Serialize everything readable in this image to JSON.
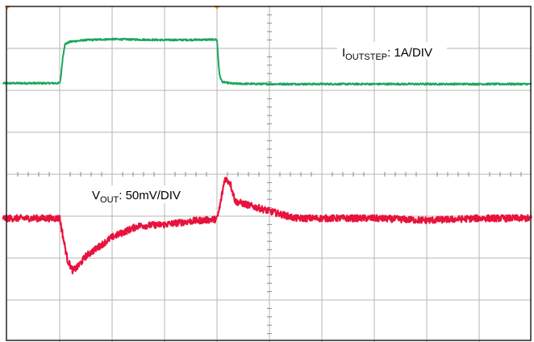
{
  "chart_data": {
    "type": "line",
    "title": "",
    "xlabel": "",
    "ylabel": "",
    "divisions": {
      "x": 10,
      "y": 8
    },
    "grid": true,
    "trigger_markers": [
      0.0,
      4.0
    ],
    "series": [
      {
        "name": "IOUTSTEP",
        "label_main": "I",
        "label_sub": "OUTSTEP",
        "label_rest": ": 1A/DIV",
        "color": "#1aa65a",
        "scale": "1A/DIV",
        "noise": 0.02,
        "x": [
          -0.08,
          1.0,
          1.02,
          1.06,
          1.1,
          1.2,
          1.5,
          2.0,
          3.0,
          4.0,
          4.02,
          4.05,
          4.1,
          4.3,
          5.0,
          6.0,
          7.0,
          8.0,
          9.0,
          10.0
        ],
        "y": [
          6.17,
          6.17,
          6.3,
          6.8,
          7.1,
          7.16,
          7.2,
          7.22,
          7.2,
          7.21,
          6.8,
          6.35,
          6.2,
          6.16,
          6.15,
          6.15,
          6.15,
          6.15,
          6.15,
          6.15
        ]
      },
      {
        "name": "VOUT",
        "label_main": "V",
        "label_sub": "OUT",
        "label_rest": ": 50mV/DIV",
        "color": "#e8123c",
        "scale": "50mV/DIV",
        "noise": 0.08,
        "x": [
          -0.08,
          1.0,
          1.08,
          1.15,
          1.25,
          1.35,
          1.5,
          2.0,
          2.5,
          3.0,
          3.5,
          4.0,
          4.05,
          4.15,
          4.25,
          4.35,
          4.5,
          5.0,
          5.5,
          6.0,
          7.0,
          8.0,
          9.0,
          10.0
        ],
        "y": [
          2.95,
          2.95,
          2.4,
          1.95,
          1.7,
          1.8,
          2.05,
          2.5,
          2.77,
          2.8,
          2.88,
          2.93,
          3.2,
          3.9,
          3.8,
          3.35,
          3.3,
          3.12,
          2.95,
          2.95,
          2.95,
          2.9,
          2.95,
          2.95
        ]
      }
    ]
  }
}
